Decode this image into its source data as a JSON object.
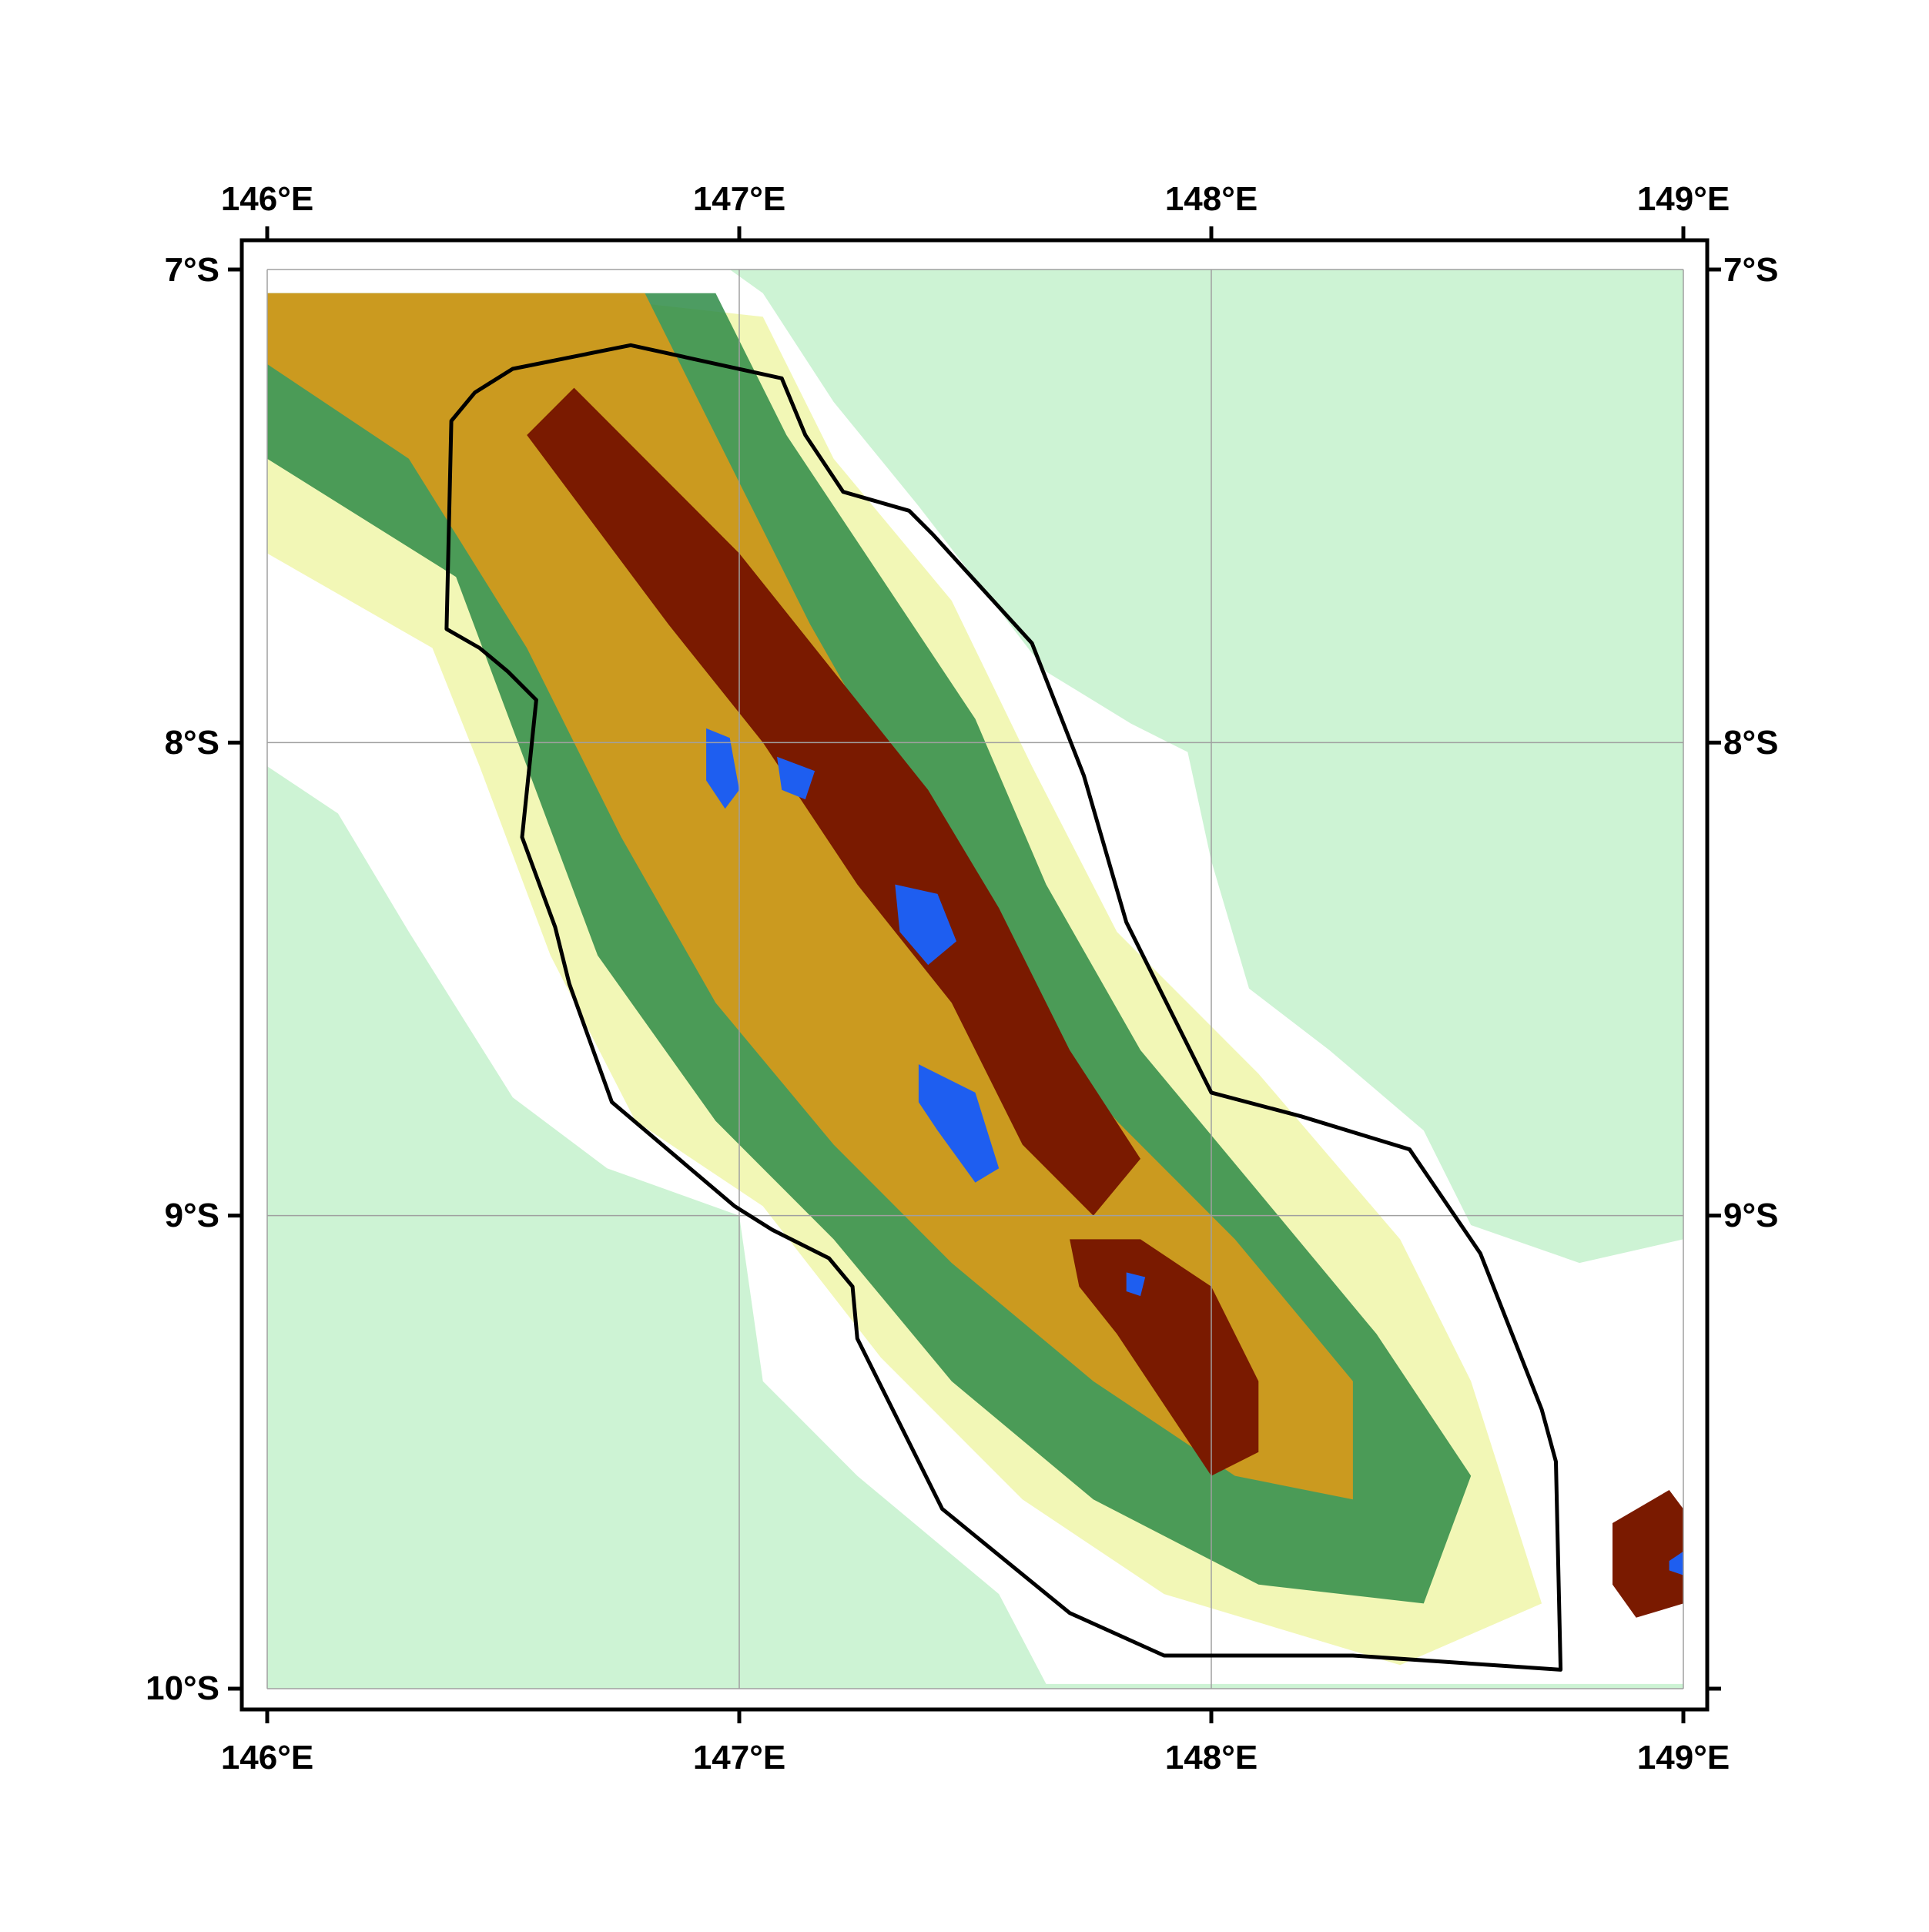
{
  "map": {
    "extent": {
      "lon_min": 146,
      "lon_max": 149,
      "lat_min": -10,
      "lat_max": -7
    },
    "graticule": {
      "lons": [
        146,
        147,
        148,
        149
      ],
      "lats": [
        -7,
        -8,
        -9,
        -10
      ],
      "grid_color": "#a0a0a0"
    },
    "axis_labels": {
      "top": [
        "146°E",
        "147°E",
        "148°E",
        "149°E"
      ],
      "bottom": [
        "146°E",
        "147°E",
        "148°E",
        "149°E"
      ],
      "left": [
        "7°S",
        "8°S",
        "9°S",
        "10°S"
      ],
      "right": [
        "7°S",
        "8°S",
        "9°S"
      ]
    },
    "elevation_palette": [
      "#cdf3d4",
      "#f2f7b6",
      "#2e8b46",
      "#d99a1a",
      "#7a1a00",
      "#1e5ef0"
    ],
    "study_area_outline": [
      [
        146.52,
        -7.21
      ],
      [
        146.77,
        -7.16
      ],
      [
        147.09,
        -7.23
      ],
      [
        147.14,
        -7.35
      ],
      [
        147.22,
        -7.47
      ],
      [
        147.36,
        -7.51
      ],
      [
        147.41,
        -7.56
      ],
      [
        147.62,
        -7.79
      ],
      [
        147.73,
        -8.07
      ],
      [
        147.82,
        -8.38
      ],
      [
        148.0,
        -8.74
      ],
      [
        148.19,
        -8.79
      ],
      [
        148.42,
        -8.86
      ],
      [
        148.57,
        -9.08
      ],
      [
        148.7,
        -9.41
      ],
      [
        148.73,
        -9.52
      ],
      [
        148.74,
        -9.96
      ],
      [
        148.3,
        -9.93
      ],
      [
        147.9,
        -9.93
      ],
      [
        147.7,
        -9.84
      ],
      [
        147.43,
        -9.62
      ],
      [
        147.25,
        -9.26
      ],
      [
        147.24,
        -9.15
      ],
      [
        147.19,
        -9.09
      ],
      [
        147.07,
        -9.03
      ],
      [
        146.99,
        -8.98
      ],
      [
        146.73,
        -8.76
      ],
      [
        146.64,
        -8.51
      ],
      [
        146.61,
        -8.39
      ],
      [
        146.54,
        -8.2
      ],
      [
        146.57,
        -7.91
      ],
      [
        146.51,
        -7.85
      ],
      [
        146.45,
        -7.8
      ],
      [
        146.38,
        -7.76
      ],
      [
        146.39,
        -7.32
      ],
      [
        146.44,
        -7.26
      ]
    ],
    "ocean_boundary": [
      [
        146.0,
        -8.05
      ],
      [
        146.15,
        -8.15
      ],
      [
        146.3,
        -8.4
      ],
      [
        146.52,
        -8.75
      ],
      [
        146.72,
        -8.9
      ],
      [
        147.0,
        -9.0
      ],
      [
        147.05,
        -9.35
      ],
      [
        147.25,
        -9.55
      ],
      [
        147.55,
        -9.8
      ],
      [
        147.65,
        -9.99
      ],
      [
        149.0,
        -9.99
      ],
      [
        149.0,
        -9.05
      ],
      [
        148.78,
        -9.1
      ],
      [
        148.55,
        -9.02
      ],
      [
        148.45,
        -8.82
      ],
      [
        148.25,
        -8.65
      ],
      [
        148.08,
        -8.52
      ],
      [
        148.0,
        -8.25
      ],
      [
        147.95,
        -8.02
      ],
      [
        147.83,
        -7.96
      ],
      [
        147.65,
        -7.85
      ],
      [
        147.55,
        -7.72
      ],
      [
        147.38,
        -7.5
      ],
      [
        147.2,
        -7.28
      ],
      [
        147.05,
        -7.05
      ],
      [
        146.98,
        -7.0
      ],
      [
        146.0,
        -7.0
      ]
    ],
    "coastal_plain": [
      [
        146.0,
        -7.6
      ],
      [
        146.35,
        -7.8
      ],
      [
        146.45,
        -8.05
      ],
      [
        146.6,
        -8.45
      ],
      [
        146.78,
        -8.8
      ],
      [
        147.05,
        -8.98
      ],
      [
        147.3,
        -9.3
      ],
      [
        147.6,
        -9.6
      ],
      [
        147.9,
        -9.8
      ],
      [
        148.4,
        -9.95
      ],
      [
        148.7,
        -9.82
      ],
      [
        148.55,
        -9.35
      ],
      [
        148.4,
        -9.05
      ],
      [
        148.1,
        -8.7
      ],
      [
        147.8,
        -8.4
      ],
      [
        147.62,
        -8.05
      ],
      [
        147.45,
        -7.7
      ],
      [
        147.2,
        -7.4
      ],
      [
        147.05,
        -7.1
      ],
      [
        146.6,
        -7.05
      ],
      [
        146.0,
        -7.05
      ]
    ],
    "foothills": [
      [
        146.0,
        -7.4
      ],
      [
        146.4,
        -7.65
      ],
      [
        146.55,
        -8.05
      ],
      [
        146.7,
        -8.45
      ],
      [
        146.95,
        -8.8
      ],
      [
        147.2,
        -9.05
      ],
      [
        147.45,
        -9.35
      ],
      [
        147.75,
        -9.6
      ],
      [
        148.1,
        -9.78
      ],
      [
        148.45,
        -9.82
      ],
      [
        148.55,
        -9.55
      ],
      [
        148.35,
        -9.25
      ],
      [
        148.1,
        -8.95
      ],
      [
        147.85,
        -8.65
      ],
      [
        147.65,
        -8.3
      ],
      [
        147.5,
        -7.95
      ],
      [
        147.3,
        -7.65
      ],
      [
        147.1,
        -7.35
      ],
      [
        146.95,
        -7.05
      ],
      [
        146.0,
        -7.05
      ]
    ],
    "mountain_belt": [
      [
        146.0,
        -7.2
      ],
      [
        146.3,
        -7.4
      ],
      [
        146.55,
        -7.8
      ],
      [
        146.75,
        -8.2
      ],
      [
        146.95,
        -8.55
      ],
      [
        147.2,
        -8.85
      ],
      [
        147.45,
        -9.1
      ],
      [
        147.75,
        -9.35
      ],
      [
        148.05,
        -9.55
      ],
      [
        148.3,
        -9.6
      ],
      [
        148.3,
        -9.35
      ],
      [
        148.05,
        -9.05
      ],
      [
        147.8,
        -8.8
      ],
      [
        147.55,
        -8.5
      ],
      [
        147.35,
        -8.1
      ],
      [
        147.15,
        -7.75
      ],
      [
        146.95,
        -7.35
      ],
      [
        146.8,
        -7.05
      ],
      [
        146.0,
        -7.05
      ]
    ],
    "high_ridges": [
      [
        [
          146.55,
          -7.35
        ],
        [
          146.7,
          -7.55
        ],
        [
          146.85,
          -7.75
        ],
        [
          147.05,
          -8.0
        ],
        [
          147.25,
          -8.3
        ],
        [
          147.45,
          -8.55
        ],
        [
          147.6,
          -8.85
        ],
        [
          147.75,
          -9.0
        ],
        [
          147.85,
          -8.88
        ],
        [
          147.7,
          -8.65
        ],
        [
          147.55,
          -8.35
        ],
        [
          147.4,
          -8.1
        ],
        [
          147.2,
          -7.85
        ],
        [
          147.0,
          -7.6
        ],
        [
          146.8,
          -7.4
        ],
        [
          146.65,
          -7.25
        ]
      ],
      [
        [
          147.7,
          -9.05
        ],
        [
          147.85,
          -9.05
        ],
        [
          148.0,
          -9.15
        ],
        [
          148.1,
          -9.35
        ],
        [
          148.1,
          -9.5
        ],
        [
          148.0,
          -9.55
        ],
        [
          147.9,
          -9.4
        ],
        [
          147.8,
          -9.25
        ],
        [
          147.72,
          -9.15
        ]
      ],
      [
        [
          148.85,
          -9.65
        ],
        [
          148.97,
          -9.58
        ],
        [
          149.0,
          -9.62
        ],
        [
          149.0,
          -9.82
        ],
        [
          148.9,
          -9.85
        ],
        [
          148.85,
          -9.78
        ]
      ]
    ],
    "summit_areas": [
      [
        [
          146.93,
          -7.97
        ],
        [
          146.98,
          -7.99
        ],
        [
          147.0,
          -8.1
        ],
        [
          146.97,
          -8.14
        ],
        [
          146.93,
          -8.08
        ]
      ],
      [
        [
          147.08,
          -8.03
        ],
        [
          147.16,
          -8.06
        ],
        [
          147.14,
          -8.12
        ],
        [
          147.09,
          -8.1
        ]
      ],
      [
        [
          147.33,
          -8.3
        ],
        [
          147.42,
          -8.32
        ],
        [
          147.46,
          -8.42
        ],
        [
          147.4,
          -8.47
        ],
        [
          147.34,
          -8.4
        ]
      ],
      [
        [
          147.38,
          -8.68
        ],
        [
          147.5,
          -8.74
        ],
        [
          147.55,
          -8.9
        ],
        [
          147.5,
          -8.93
        ],
        [
          147.42,
          -8.82
        ],
        [
          147.38,
          -8.76
        ]
      ],
      [
        [
          147.82,
          -9.12
        ],
        [
          147.86,
          -9.13
        ],
        [
          147.85,
          -9.17
        ],
        [
          147.82,
          -9.16
        ]
      ],
      [
        [
          148.97,
          -9.73
        ],
        [
          149.0,
          -9.71
        ],
        [
          149.0,
          -9.76
        ],
        [
          148.97,
          -9.75
        ]
      ]
    ]
  }
}
